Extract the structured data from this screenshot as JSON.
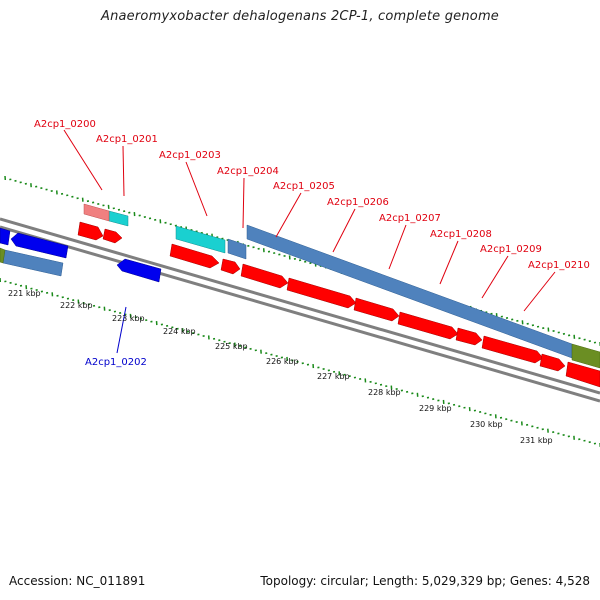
{
  "title": "Anaeromyxobacter dehalogenans 2CP-1, complete genome",
  "footer": {
    "accession": "Accession: NC_011891",
    "stats": "Topology: circular; Length: 5,029,329 bp; Genes: 4,528"
  },
  "colors": {
    "label_red": "#e0000f",
    "label_blue": "#0000cc",
    "gene_red": "#ff0000",
    "gene_blue": "#0000ee",
    "steel_blue": "#4f82bd",
    "cyan": "#1ad0d0",
    "pink": "#f08080",
    "olive": "#6b8e23",
    "backbone": "#7f7f7f",
    "tick_green": "#1a8a1a"
  },
  "gene_labels": [
    {
      "text": "A2cp1_0200",
      "color": "red"
    },
    {
      "text": "A2cp1_0201",
      "color": "red"
    },
    {
      "text": "A2cp1_0203",
      "color": "red"
    },
    {
      "text": "A2cp1_0204",
      "color": "red"
    },
    {
      "text": "A2cp1_0205",
      "color": "red"
    },
    {
      "text": "A2cp1_0206",
      "color": "red"
    },
    {
      "text": "A2cp1_0207",
      "color": "red"
    },
    {
      "text": "A2cp1_0208",
      "color": "red"
    },
    {
      "text": "A2cp1_0209",
      "color": "red"
    },
    {
      "text": "A2cp1_0210",
      "color": "red"
    },
    {
      "text": "A2cp1_0202",
      "color": "blue"
    }
  ],
  "kbp_labels": [
    "221 kbp",
    "222 kbp",
    "223 kbp",
    "224 kbp",
    "225 kbp",
    "226 kbp",
    "227 kbp",
    "228 kbp",
    "229 kbp",
    "230 kbp",
    "231 kbp"
  ]
}
